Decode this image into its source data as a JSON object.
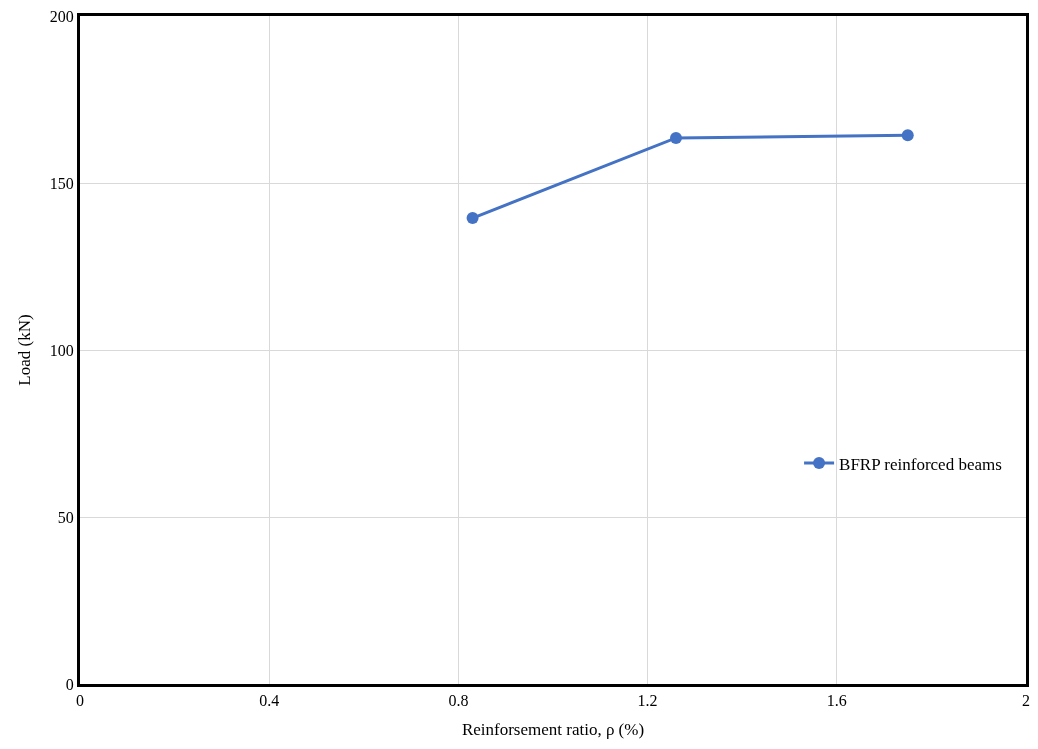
{
  "chart_data": {
    "type": "line",
    "xlabel": "Reinforsement ratio, ρ (%)",
    "ylabel": "Load (kN)",
    "x": [
      0.83,
      1.26,
      1.75
    ],
    "series": [
      {
        "name": "BFRP reinforced beams",
        "color": "#4472c4",
        "values": [
          139.5,
          163.5,
          164.3
        ]
      }
    ],
    "xlim": [
      0,
      2
    ],
    "xticks": [
      0,
      0.4,
      0.8,
      1.2,
      1.6,
      2
    ],
    "ylim": [
      0,
      200
    ],
    "yticks": [
      0,
      50,
      100,
      150,
      200
    ],
    "grid": true,
    "legend": "right",
    "marker": "circle",
    "line_style": "solid"
  }
}
